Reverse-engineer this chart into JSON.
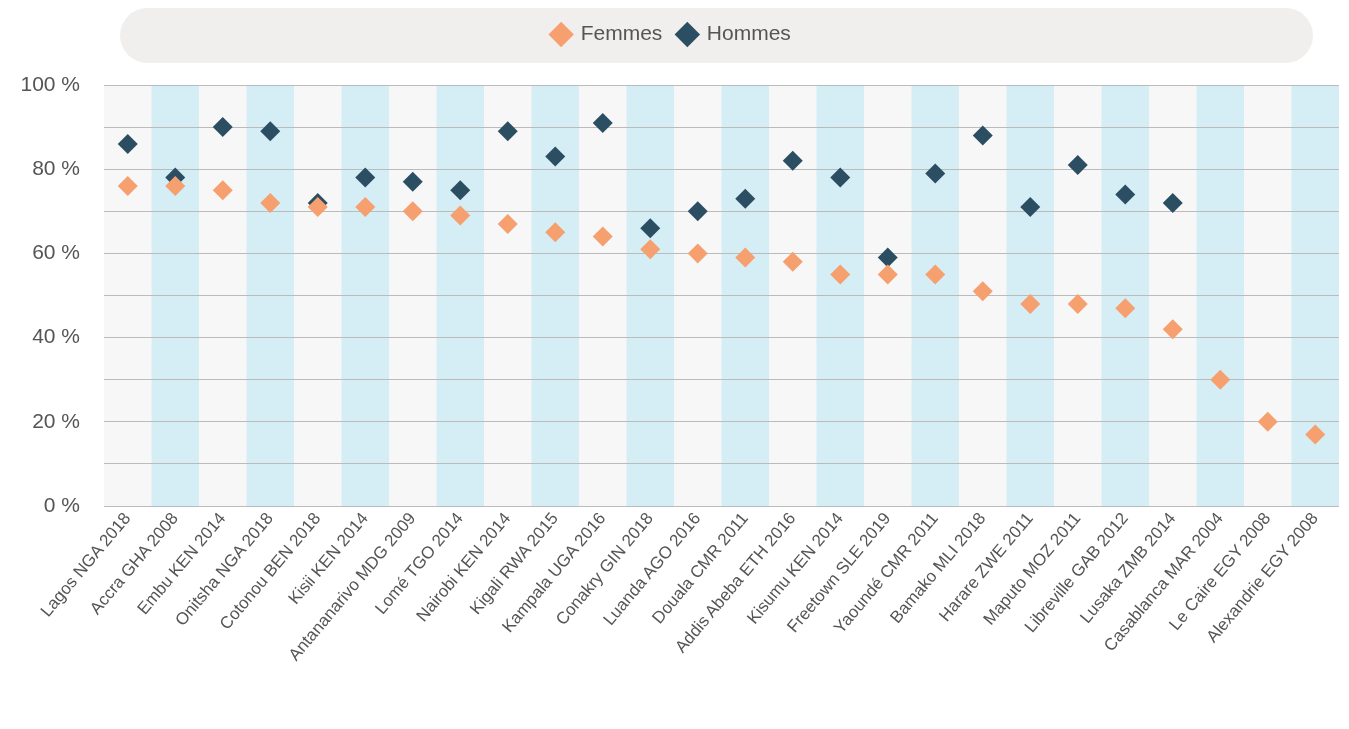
{
  "chart_data": {
    "type": "scatter",
    "categories": [
      "Lagos NGA 2018",
      "Accra GHA 2008",
      "Embu KEN 2014",
      "Onitsha NGA 2018",
      "Cotonou BEN 2018",
      "Kisii KEN 2014",
      "Antananarivo MDG 2009",
      "Lomé TGO 2014",
      "Nairobi KEN 2014",
      "Kigali RWA 2015",
      "Kampala UGA 2016",
      "Conakry GIN 2018",
      "Luanda AGO 2016",
      "Douala CMR 2011",
      "Addis Abeba ETH 2016",
      "Kisumu KEN 2014",
      "Freetown SLE 2019",
      "Yaoundé CMR 2011",
      "Bamako MLI 2018",
      "Harare ZWE 2011",
      "Maputo MOZ 2011",
      "Libreville GAB 2012",
      "Lusaka ZMB 2014",
      "Casablanca MAR 2004",
      "Le Caire EGY 2008",
      "Alexandrie EGY 2008"
    ],
    "series": [
      {
        "name": "Hommes",
        "color": "#2c4e63",
        "values": [
          86,
          78,
          90,
          89,
          72,
          78,
          77,
          75,
          89,
          83,
          91,
          66,
          70,
          73,
          82,
          78,
          59,
          79,
          88,
          71,
          81,
          74,
          72,
          null,
          null,
          null
        ]
      },
      {
        "name": "Femmes",
        "color": "#f5a06e",
        "values": [
          76,
          76,
          75,
          72,
          71,
          71,
          70,
          69,
          67,
          65,
          64,
          61,
          60,
          59,
          58,
          55,
          55,
          55,
          51,
          48,
          48,
          47,
          42,
          30,
          20,
          17
        ]
      }
    ],
    "ylim": [
      0,
      100
    ],
    "yticks": [
      {
        "value": 0,
        "label": "0 %"
      },
      {
        "value": 10,
        "label": null
      },
      {
        "value": 20,
        "label": "20 %"
      },
      {
        "value": 30,
        "label": null
      },
      {
        "value": 40,
        "label": "40 %"
      },
      {
        "value": 50,
        "label": null
      },
      {
        "value": 60,
        "label": "60 %"
      },
      {
        "value": 70,
        "label": null
      },
      {
        "value": 80,
        "label": "80 %"
      },
      {
        "value": 90,
        "label": null
      },
      {
        "value": 100,
        "label": "100 %"
      }
    ],
    "grid": "y",
    "legend": "top",
    "marker": "diamond",
    "bands": [
      {
        "axis": "x",
        "from": "Accra GHA 2008",
        "to": "Accra GHA 2008",
        "color": "#d5edf4"
      },
      {
        "axis": "x",
        "from": "Onitsha NGA 2018",
        "to": "Onitsha NGA 2018",
        "color": "#d5edf4"
      },
      {
        "axis": "x",
        "from": "Kisii KEN 2014",
        "to": "Kisii KEN 2014",
        "color": "#d5edf4"
      },
      {
        "axis": "x",
        "from": "Lomé TGO 2014",
        "to": "Lomé TGO 2014",
        "color": "#d5edf4"
      },
      {
        "axis": "x",
        "from": "Kigali RWA 2015",
        "to": "Kigali RWA 2015",
        "color": "#d5edf4"
      },
      {
        "axis": "x",
        "from": "Conakry GIN 2018",
        "to": "Conakry GIN 2018",
        "color": "#d5edf4"
      },
      {
        "axis": "x",
        "from": "Douala CMR 2011",
        "to": "Douala CMR 2011",
        "color": "#d5edf4"
      },
      {
        "axis": "x",
        "from": "Kisumu KEN 2014",
        "to": "Kisumu KEN 2014",
        "color": "#d5edf4"
      },
      {
        "axis": "x",
        "from": "Yaoundé CMR 2011",
        "to": "Yaoundé CMR 2011",
        "color": "#d5edf4"
      },
      {
        "axis": "x",
        "from": "Harare ZWE 2011",
        "to": "Harare ZWE 2011",
        "color": "#d5edf4"
      },
      {
        "axis": "x",
        "from": "Libreville GAB 2012",
        "to": "Libreville GAB 2012",
        "color": "#d5edf4"
      },
      {
        "axis": "x",
        "from": "Casablanca MAR 2004",
        "to": "Casablanca MAR 2004",
        "color": "#d5edf4"
      },
      {
        "axis": "x",
        "from": "Alexandrie EGY 2008",
        "to": "Alexandrie EGY 2008",
        "color": "#d5edf4"
      }
    ]
  }
}
